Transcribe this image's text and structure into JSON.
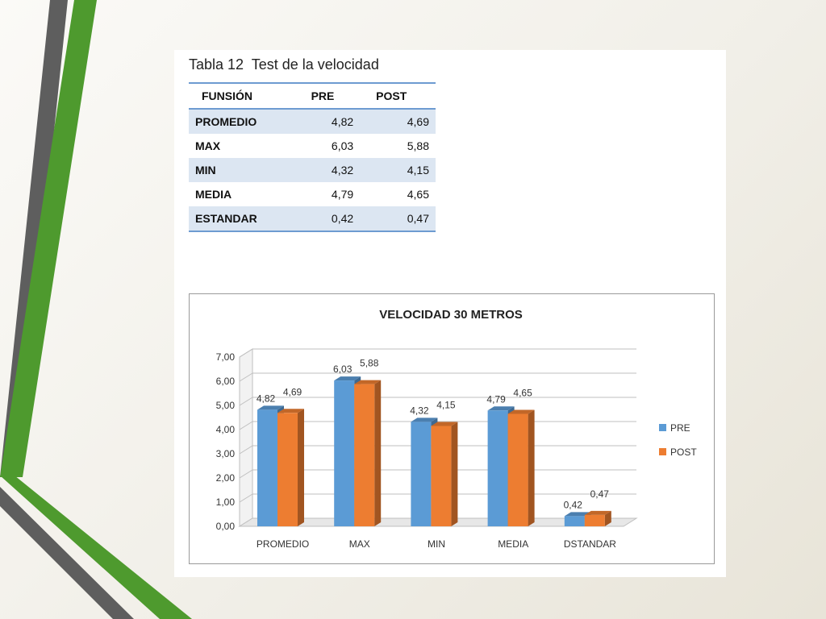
{
  "table": {
    "title": "Tabla 12  Test de la velocidad",
    "headers": [
      "FUNSIÓN",
      "PRE",
      "POST"
    ],
    "rows": [
      {
        "label": "PROMEDIO",
        "pre": "4,82",
        "post": "4,69"
      },
      {
        "label": "MAX",
        "pre": "6,03",
        "post": "5,88"
      },
      {
        "label": "MIN",
        "pre": "4,32",
        "post": "4,15"
      },
      {
        "label": "MEDIA",
        "pre": "4,79",
        "post": "4,65"
      },
      {
        "label": "ESTANDAR",
        "pre": "0,42",
        "post": "0,47"
      }
    ],
    "colors": {
      "header_rule": "#6d9bd1",
      "alt_row": "#dce6f2"
    }
  },
  "chart_data": {
    "type": "bar",
    "title": "VELOCIDAD 30 METROS",
    "categories": [
      "PROMEDIO",
      "MAX",
      "MIN",
      "MEDIA",
      "DSTANDAR"
    ],
    "series": [
      {
        "name": "PRE",
        "values": [
          4.82,
          6.03,
          4.32,
          4.79,
          0.42
        ],
        "labels": [
          "4,82",
          "6,03",
          "4,32",
          "4,79",
          "0,42"
        ],
        "color": "#5b9bd5"
      },
      {
        "name": "POST",
        "values": [
          4.69,
          5.88,
          4.15,
          4.65,
          0.47
        ],
        "labels": [
          "4,69",
          "5,88",
          "4,15",
          "4,65",
          "0,47"
        ],
        "color": "#ed7d31"
      }
    ],
    "ylim": [
      0,
      7
    ],
    "yticks": [
      "0,00",
      "1,00",
      "2,00",
      "3,00",
      "4,00",
      "5,00",
      "6,00",
      "7,00"
    ],
    "grid": true,
    "legend": "right",
    "style": "3d-column"
  },
  "decor": {
    "accent_green": "#4e9a2e",
    "accent_gray": "#5e5e5e"
  }
}
